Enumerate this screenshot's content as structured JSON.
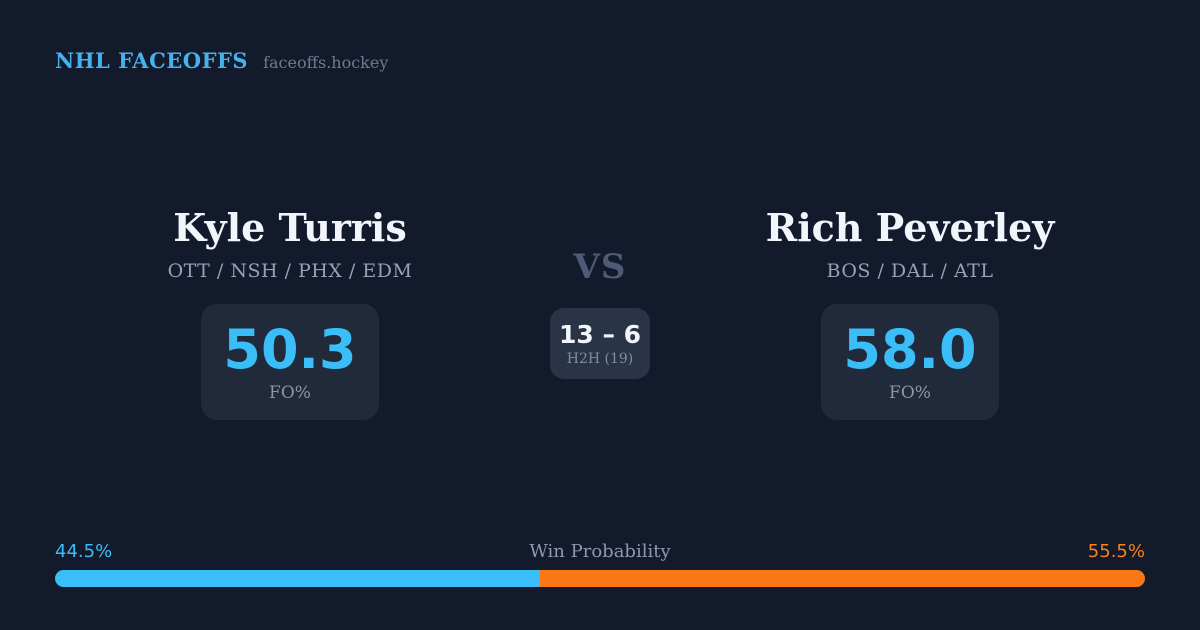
{
  "header": {
    "brand": "NHL FACEOFFS",
    "site": "faceoffs.hockey"
  },
  "matchup": {
    "vs_label": "VS",
    "h2h": {
      "score": "13 – 6",
      "label": "H2H (19)"
    },
    "players": [
      {
        "name": "Kyle Turris",
        "teams": "OTT / NSH / PHX / EDM",
        "fo_pct": "50.3",
        "stat_label": "FO%"
      },
      {
        "name": "Rich Peverley",
        "teams": "BOS / DAL / ATL",
        "fo_pct": "58.0",
        "stat_label": "FO%"
      }
    ]
  },
  "win_probability": {
    "title": "Win Probability",
    "left_label": "44.5%",
    "right_label": "55.5%",
    "left_value": 44.5,
    "right_value": 55.5
  },
  "colors": {
    "background": "#121a2c",
    "card": "#202a3b",
    "h2h_card": "#2a3447",
    "accent_blue": "#3bbdf8",
    "accent_orange": "#f97714",
    "brand_blue": "#46b2ec",
    "text_white": "#f2f5f9",
    "text_muted": "#93a2b8"
  }
}
